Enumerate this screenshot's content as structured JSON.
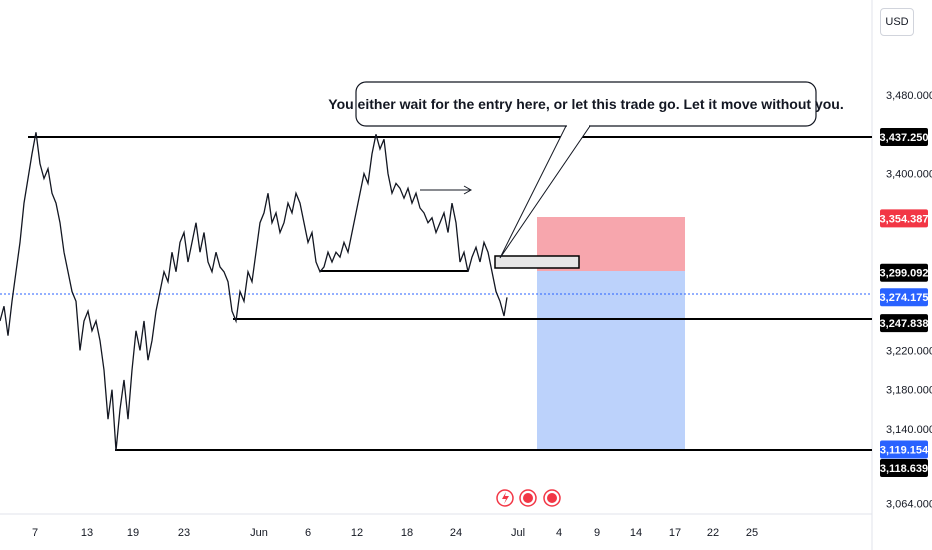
{
  "currency": "USD",
  "annotation": "You either wait for the entry here, or let this trade go. Let it move without you.",
  "colors": {
    "candle": "#131722",
    "stop_zone": "#f7a6ad",
    "target_zone": "#bcd2fb",
    "current_line": "#2962ff",
    "red_tag": "#f23645",
    "blue_tag": "#2962ff",
    "black_tag": "#000000"
  },
  "chart_data": {
    "type": "line",
    "ylim": [
      3040,
      3540
    ],
    "y_ticks": [
      "3,480.000",
      "3,400.000",
      "3,220.000",
      "3,180.000",
      "3,140.000",
      "3,064.000"
    ],
    "x_tick_labels": [
      "7",
      "13",
      "19",
      "23",
      "Jun",
      "6",
      "12",
      "18",
      "24",
      "Jul",
      "4",
      "9",
      "14",
      "17",
      "22",
      "25"
    ],
    "price_tags": [
      {
        "label": "3,437.250",
        "value": 3437.25,
        "style": "black"
      },
      {
        "label": "3,354.387",
        "value": 3354.387,
        "style": "red"
      },
      {
        "label": "3,299.092",
        "value": 3299.092,
        "style": "black"
      },
      {
        "label": "3,274.175",
        "value": 3274.175,
        "style": "blue"
      },
      {
        "label": "3,247.838",
        "value": 3247.838,
        "style": "black"
      },
      {
        "label": "3,119.154",
        "value": 3119.154,
        "style": "blue"
      },
      {
        "label": "3,118.639",
        "value": 3118.639,
        "style": "black"
      }
    ],
    "series_path": [
      [
        0,
        3250
      ],
      [
        4,
        3265
      ],
      [
        8,
        3235
      ],
      [
        12,
        3270
      ],
      [
        16,
        3300
      ],
      [
        20,
        3330
      ],
      [
        24,
        3370
      ],
      [
        28,
        3395
      ],
      [
        32,
        3420
      ],
      [
        36,
        3442
      ],
      [
        40,
        3410
      ],
      [
        44,
        3395
      ],
      [
        48,
        3405
      ],
      [
        52,
        3380
      ],
      [
        56,
        3370
      ],
      [
        60,
        3350
      ],
      [
        64,
        3320
      ],
      [
        68,
        3300
      ],
      [
        72,
        3280
      ],
      [
        76,
        3270
      ],
      [
        80,
        3220
      ],
      [
        84,
        3250
      ],
      [
        88,
        3260
      ],
      [
        92,
        3240
      ],
      [
        96,
        3250
      ],
      [
        100,
        3230
      ],
      [
        104,
        3200
      ],
      [
        108,
        3150
      ],
      [
        112,
        3180
      ],
      [
        116,
        3118
      ],
      [
        120,
        3160
      ],
      [
        124,
        3190
      ],
      [
        128,
        3150
      ],
      [
        132,
        3200
      ],
      [
        136,
        3240
      ],
      [
        140,
        3220
      ],
      [
        144,
        3250
      ],
      [
        148,
        3210
      ],
      [
        152,
        3230
      ],
      [
        156,
        3260
      ],
      [
        160,
        3280
      ],
      [
        164,
        3300
      ],
      [
        168,
        3290
      ],
      [
        172,
        3320
      ],
      [
        176,
        3300
      ],
      [
        180,
        3330
      ],
      [
        184,
        3340
      ],
      [
        188,
        3310
      ],
      [
        192,
        3330
      ],
      [
        196,
        3350
      ],
      [
        200,
        3320
      ],
      [
        204,
        3340
      ],
      [
        208,
        3310
      ],
      [
        212,
        3300
      ],
      [
        216,
        3320
      ],
      [
        220,
        3305
      ],
      [
        224,
        3300
      ],
      [
        228,
        3290
      ],
      [
        232,
        3260
      ],
      [
        236,
        3250
      ],
      [
        240,
        3280
      ],
      [
        244,
        3270
      ],
      [
        248,
        3300
      ],
      [
        252,
        3290
      ],
      [
        256,
        3320
      ],
      [
        260,
        3350
      ],
      [
        264,
        3360
      ],
      [
        268,
        3380
      ],
      [
        272,
        3350
      ],
      [
        276,
        3360
      ],
      [
        280,
        3340
      ],
      [
        284,
        3350
      ],
      [
        288,
        3370
      ],
      [
        292,
        3360
      ],
      [
        296,
        3380
      ],
      [
        300,
        3370
      ],
      [
        304,
        3350
      ],
      [
        308,
        3330
      ],
      [
        312,
        3340
      ],
      [
        316,
        3310
      ],
      [
        320,
        3300
      ],
      [
        324,
        3305
      ],
      [
        328,
        3320
      ],
      [
        332,
        3310
      ],
      [
        336,
        3320
      ],
      [
        340,
        3315
      ],
      [
        344,
        3330
      ],
      [
        348,
        3320
      ],
      [
        352,
        3340
      ],
      [
        356,
        3360
      ],
      [
        360,
        3380
      ],
      [
        364,
        3400
      ],
      [
        368,
        3390
      ],
      [
        372,
        3420
      ],
      [
        376,
        3440
      ],
      [
        380,
        3425
      ],
      [
        384,
        3435
      ],
      [
        388,
        3400
      ],
      [
        392,
        3380
      ],
      [
        396,
        3390
      ],
      [
        400,
        3385
      ],
      [
        404,
        3375
      ],
      [
        408,
        3385
      ],
      [
        412,
        3370
      ],
      [
        416,
        3380
      ],
      [
        420,
        3365
      ],
      [
        424,
        3360
      ],
      [
        428,
        3350
      ],
      [
        432,
        3355
      ],
      [
        436,
        3340
      ],
      [
        440,
        3350
      ],
      [
        444,
        3360
      ],
      [
        448,
        3340
      ],
      [
        452,
        3370
      ],
      [
        456,
        3350
      ],
      [
        460,
        3310
      ],
      [
        464,
        3320
      ],
      [
        468,
        3300
      ],
      [
        472,
        3315
      ],
      [
        476,
        3325
      ],
      [
        480,
        3310
      ],
      [
        484,
        3330
      ],
      [
        488,
        3320
      ],
      [
        492,
        3300
      ],
      [
        496,
        3280
      ],
      [
        500,
        3270
      ],
      [
        504,
        3255
      ],
      [
        507,
        3274
      ]
    ]
  }
}
